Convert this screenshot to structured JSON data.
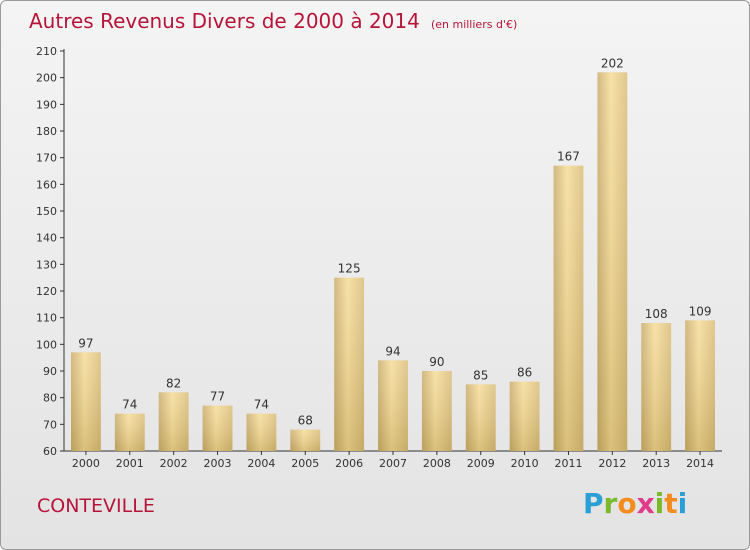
{
  "header": {
    "title": "Autres Revenus Divers de 2000 à 2014",
    "subtitle": "(en milliers d'€)"
  },
  "footer": {
    "commune": "CONTEVILLE",
    "logo_parts": [
      "P",
      "r",
      "o",
      "x",
      "i",
      "t",
      "i"
    ]
  },
  "colors": {
    "title": "#b7143a",
    "bar_light": "#f6dc97",
    "bar_dark": "#c3a766",
    "axis": "#333333"
  },
  "chart_data": {
    "type": "bar",
    "title": "Autres Revenus Divers de 2000 à 2014",
    "subtitle": "(en milliers d'€)",
    "xlabel": "",
    "ylabel": "",
    "categories": [
      "2000",
      "2001",
      "2002",
      "2003",
      "2004",
      "2005",
      "2006",
      "2007",
      "2008",
      "2009",
      "2010",
      "2011",
      "2012",
      "2013",
      "2014"
    ],
    "values": [
      97,
      74,
      82,
      77,
      74,
      68,
      125,
      94,
      90,
      85,
      86,
      167,
      202,
      108,
      109
    ],
    "ylim": [
      60,
      210
    ],
    "yticks": [
      60,
      70,
      80,
      90,
      100,
      110,
      120,
      130,
      140,
      150,
      160,
      170,
      180,
      190,
      200,
      210
    ],
    "grid": false,
    "data_labels": true,
    "legend": "none"
  }
}
